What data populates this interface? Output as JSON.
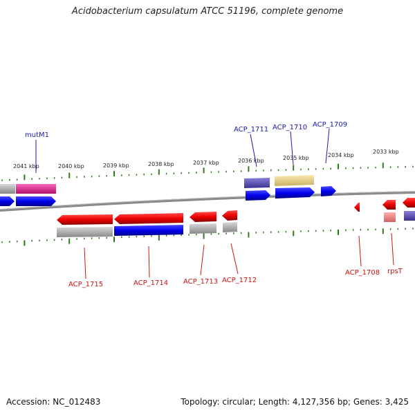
{
  "title": "Acidobacterium capsulatum ATCC 51196, complete genome",
  "footer": {
    "accession": "Accession: NC_012483",
    "summary": "Topology: circular; Length: 4,127,356 bp; Genes: 3,425"
  },
  "colors": {
    "forward_cds": "#0000ee",
    "reverse_cds": "#ee0000",
    "forward_label": "#1a1aa8",
    "reverse_label": "#cc1111",
    "backbone": "#808080",
    "ticks": "#2e7d1a",
    "magenta_feature": "#e0208a",
    "purple_feature": "#5a4fb0",
    "yellow_feature": "#e8d890",
    "gray_feature": "#b0b0b0",
    "pink_feature": "#f08080"
  },
  "scale": {
    "kbp_labels": [
      "2041 kbp",
      "2040 kbp",
      "2039 kbp",
      "2038 kbp",
      "2037 kbp",
      "2036 kbp",
      "2035 kbp",
      "2034 kbp",
      "2033 kbp"
    ]
  },
  "forward_gene_labels": [
    "mutM1",
    "ACP_1711",
    "ACP_1710",
    "ACP_1709"
  ],
  "reverse_gene_labels": [
    "ACP_1715",
    "ACP_1714",
    "ACP_1713",
    "ACP_1712",
    "ACP_1708",
    "rpsT"
  ]
}
